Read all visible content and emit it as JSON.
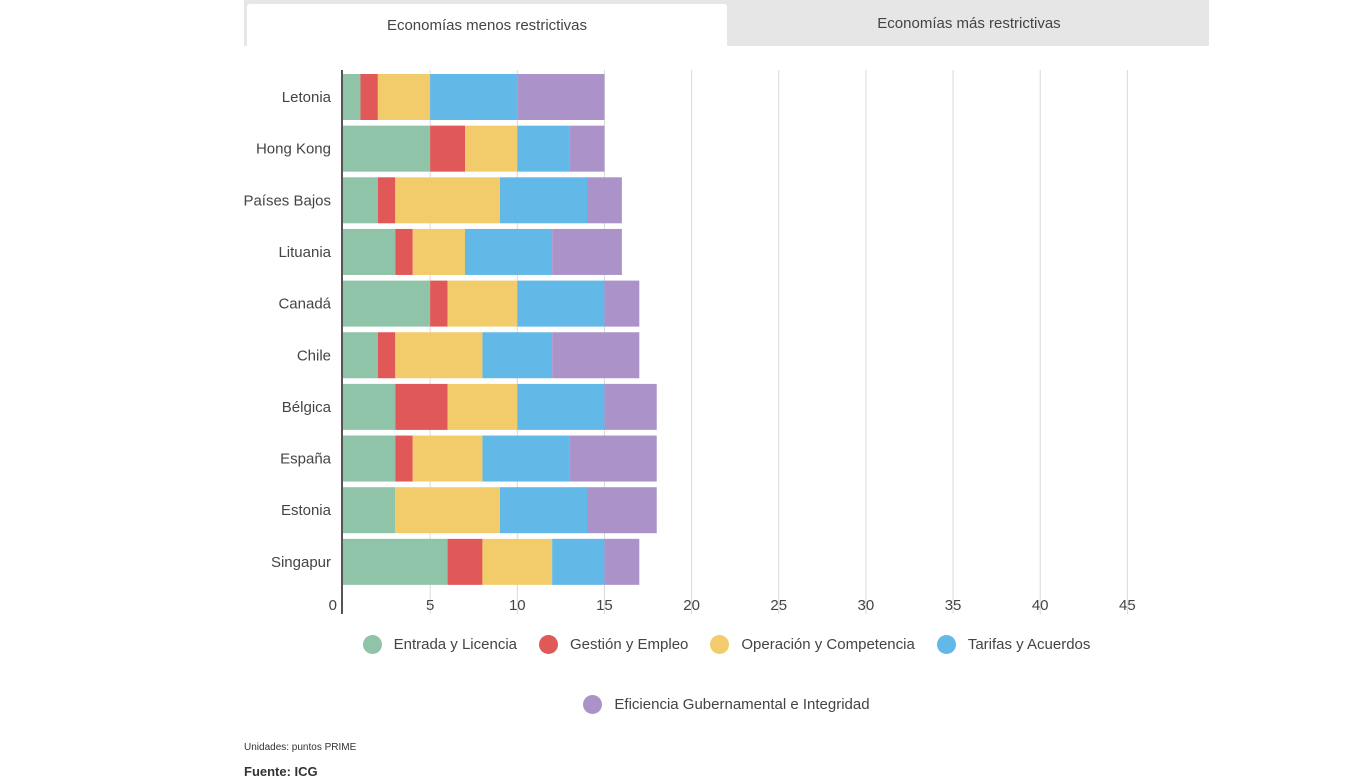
{
  "tabs": [
    {
      "label": "Economías menos restrictivas",
      "active": true
    },
    {
      "label": "Economías más restrictivas",
      "active": false
    }
  ],
  "chart_data": {
    "type": "bar",
    "orientation": "horizontal",
    "stacked": true,
    "categories": [
      "Letonia",
      "Hong Kong",
      "Países Bajos",
      "Lituania",
      "Canadá",
      "Chile",
      "Bélgica",
      "España",
      "Estonia",
      "Singapur"
    ],
    "series": [
      {
        "name": "Entrada y Licencia",
        "color": "#8fc4a8",
        "values": [
          1,
          5,
          2,
          3,
          5,
          2,
          3,
          3,
          3,
          6
        ]
      },
      {
        "name": "Gestión y Empleo",
        "color": "#e05858",
        "values": [
          1,
          2,
          1,
          1,
          1,
          1,
          3,
          1,
          0,
          2
        ]
      },
      {
        "name": "Operación y Competencia",
        "color": "#f2cc6b",
        "values": [
          3,
          3,
          6,
          3,
          4,
          5,
          4,
          4,
          6,
          4
        ]
      },
      {
        "name": "Tarifas y Acuerdos",
        "color": "#62b8e6",
        "values": [
          5,
          3,
          5,
          5,
          5,
          4,
          5,
          5,
          5,
          3
        ]
      },
      {
        "name": "Eficiencia Gubernamental e Integridad",
        "color": "#ab93c9",
        "values": [
          5,
          2,
          2,
          4,
          2,
          5,
          3,
          5,
          4,
          2
        ]
      }
    ],
    "xlim": [
      0,
      45
    ],
    "x_ticks": [
      0,
      5,
      10,
      15,
      20,
      25,
      30,
      35,
      40,
      45
    ],
    "grid": true,
    "legend_position": "bottom"
  },
  "units_note": "Unidades: puntos PRIME",
  "source_note": "Fuente: ICG"
}
